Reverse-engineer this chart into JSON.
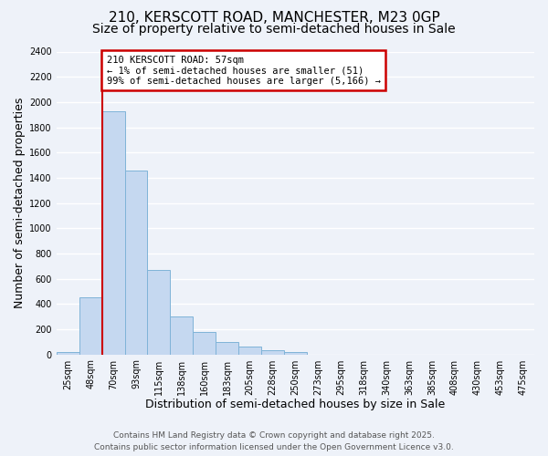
{
  "title_line1": "210, KERSCOTT ROAD, MANCHESTER, M23 0GP",
  "title_line2": "Size of property relative to semi-detached houses in Sale",
  "xlabel": "Distribution of semi-detached houses by size in Sale",
  "ylabel": "Number of semi-detached properties",
  "bar_color": "#c5d8f0",
  "bar_edge_color": "#7fb3d8",
  "categories": [
    "25sqm",
    "48sqm",
    "70sqm",
    "93sqm",
    "115sqm",
    "138sqm",
    "160sqm",
    "183sqm",
    "205sqm",
    "228sqm",
    "250sqm",
    "273sqm",
    "295sqm",
    "318sqm",
    "340sqm",
    "363sqm",
    "385sqm",
    "408sqm",
    "430sqm",
    "453sqm",
    "475sqm"
  ],
  "values": [
    20,
    450,
    1930,
    1460,
    670,
    300,
    180,
    95,
    60,
    35,
    20,
    0,
    0,
    0,
    0,
    0,
    0,
    0,
    0,
    0,
    0
  ],
  "ylim": [
    0,
    2400
  ],
  "yticks": [
    0,
    200,
    400,
    600,
    800,
    1000,
    1200,
    1400,
    1600,
    1800,
    2000,
    2200,
    2400
  ],
  "vline_color": "#cc0000",
  "annotation_title": "210 KERSCOTT ROAD: 57sqm",
  "annotation_line1": "← 1% of semi-detached houses are smaller (51)",
  "annotation_line2": "99% of semi-detached houses are larger (5,166) →",
  "annotation_box_color": "#cc0000",
  "footer_line1": "Contains HM Land Registry data © Crown copyright and database right 2025.",
  "footer_line2": "Contains public sector information licensed under the Open Government Licence v3.0.",
  "background_color": "#eef2f9",
  "grid_color": "#ffffff",
  "title_fontsize": 11,
  "subtitle_fontsize": 10,
  "axis_label_fontsize": 9,
  "tick_fontsize": 7,
  "footer_fontsize": 6.5
}
